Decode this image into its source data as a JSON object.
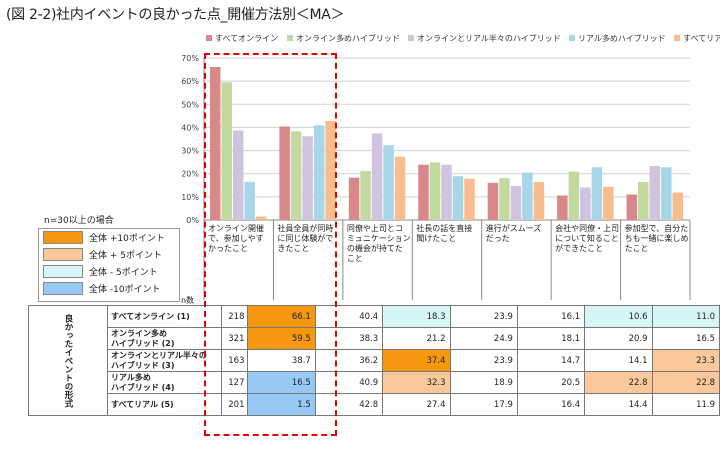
{
  "title": "(図 2-2)社内イベントの良かった点_開催方法別＜MA＞",
  "chart_data": {
    "type": "bar",
    "title": "(図 2-2)社内イベントの良かった点_開催方法別＜MA＞",
    "ylim": [
      0,
      70
    ],
    "yticks": [
      "0%",
      "10%",
      "20%",
      "30%",
      "40%",
      "50%",
      "60%",
      "70%"
    ],
    "categories": [
      [
        "オンライン開催",
        "で、参加しやす",
        "かったこと"
      ],
      [
        "社員全員が同時",
        "に同じ体験がで",
        "きたこと"
      ],
      [
        "同僚や上司とコ",
        "ミュニケーション",
        "の機会が持てた",
        "こと"
      ],
      [
        "社長の話を直接",
        "聞けたこと"
      ],
      [
        "進行がスムーズ",
        "だった"
      ],
      [
        "会社や同僚・上司",
        "について知ること",
        "ができたこと"
      ],
      [
        "参加型で、自分た",
        "ちも一緒に楽しめ",
        "たこと"
      ]
    ],
    "series": [
      {
        "name": "すべてオンライン",
        "color": "#d9888a",
        "values": [
          66.1,
          40.4,
          18.3,
          23.9,
          16.1,
          10.6,
          11.0
        ]
      },
      {
        "name": "オンライン多めハイブリッド",
        "color": "#c4d9a0",
        "values": [
          59.5,
          38.3,
          21.2,
          24.9,
          18.1,
          20.9,
          16.5
        ]
      },
      {
        "name": "オンラインとリアル半々のハイブリッド",
        "color": "#cfc3e0",
        "values": [
          38.7,
          36.2,
          37.4,
          23.9,
          14.7,
          14.1,
          23.3
        ]
      },
      {
        "name": "リアル多めハイブリッド",
        "color": "#a9d6e6",
        "values": [
          16.5,
          40.9,
          32.3,
          18.9,
          20.5,
          22.8,
          22.8
        ]
      },
      {
        "name": "すべてリアル",
        "color": "#f7bd8e",
        "values": [
          1.5,
          42.8,
          27.4,
          17.9,
          16.4,
          14.4,
          11.9
        ]
      }
    ]
  },
  "legend_note": "n=30以上の場合",
  "highlight_legend": [
    {
      "label": "全体 +10ポイント",
      "color": "#f7960f"
    },
    {
      "label": "全体 + 5ポイント",
      "color": "#fbc89b"
    },
    {
      "label": "全体 - 5ポイント",
      "color": "#d6f6f8"
    },
    {
      "label": "全体 -10ポイント",
      "color": "#98c8f4"
    }
  ],
  "table": {
    "n_header": "n数",
    "side_label": "良かったイベントの形式",
    "rows": [
      {
        "label": [
          "すべてオンライン (1)"
        ],
        "n": "218",
        "values": [
          "66.1",
          "40.4",
          "18.3",
          "23.9",
          "16.1",
          "10.6",
          "11.0"
        ],
        "fills": [
          "#f7960f",
          "",
          "#d6f6f8",
          "",
          "",
          "#d6f6f8",
          "#d6f6f8"
        ]
      },
      {
        "label": [
          "オンライン多め",
          "ハイブリッド (2)"
        ],
        "n": "321",
        "values": [
          "59.5",
          "38.3",
          "21.2",
          "24.9",
          "18.1",
          "20.9",
          "16.5"
        ],
        "fills": [
          "#f7960f",
          "",
          "",
          "",
          "",
          "",
          ""
        ]
      },
      {
        "label": [
          "オンラインとリアル半々の",
          "ハイブリッド (3)"
        ],
        "n": "163",
        "values": [
          "38.7",
          "36.2",
          "37.4",
          "23.9",
          "14.7",
          "14.1",
          "23.3"
        ],
        "fills": [
          "",
          "",
          "#f7960f",
          "",
          "",
          "",
          "#fbc89b"
        ]
      },
      {
        "label": [
          "リアル多め",
          "ハイブリッド (4)"
        ],
        "n": "127",
        "values": [
          "16.5",
          "40.9",
          "32.3",
          "18.9",
          "20.5",
          "22.8",
          "22.8"
        ],
        "fills": [
          "#98c8f4",
          "",
          "#fbc89b",
          "",
          "",
          "#fbc89b",
          "#fbc89b"
        ]
      },
      {
        "label": [
          "すべてリアル (5)"
        ],
        "n": "201",
        "values": [
          "1.5",
          "42.8",
          "27.4",
          "17.9",
          "16.4",
          "14.4",
          "11.9"
        ],
        "fills": [
          "#98c8f4",
          "",
          "",
          "",
          "",
          "",
          ""
        ]
      }
    ]
  }
}
